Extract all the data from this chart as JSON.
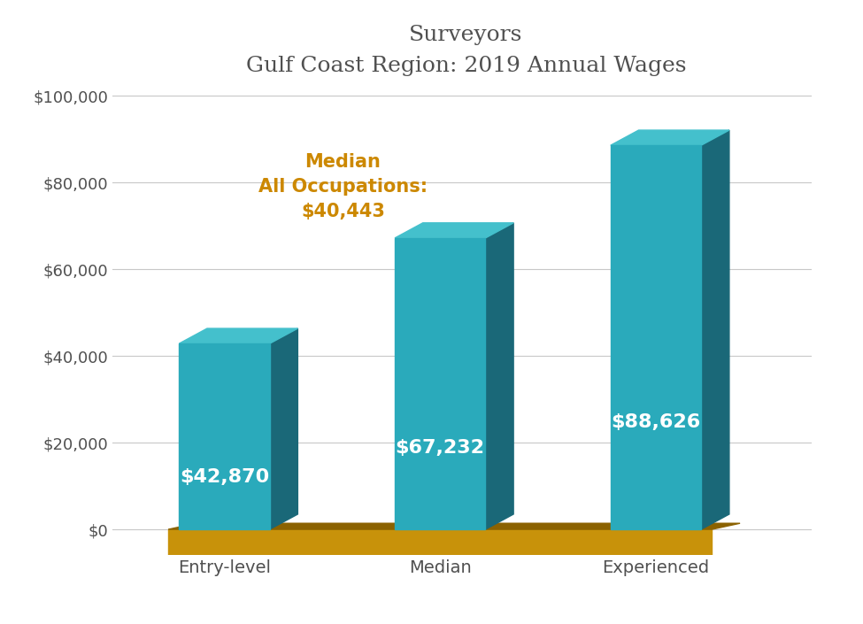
{
  "title_line1": "Surveyors",
  "title_line2": "Gulf Coast Region: 2019 Annual Wages",
  "categories": [
    "Entry-level",
    "Median",
    "Experienced"
  ],
  "values": [
    42870,
    67232,
    88626
  ],
  "value_labels": [
    "$42,870",
    "$67,232",
    "$88,626"
  ],
  "bar_front_color": "#2aaabb",
  "bar_side_color": "#1a6878",
  "bar_top_color": "#44c0cc",
  "floor_front_color": "#c8920a",
  "floor_top_color": "#c8920a",
  "floor_side_color": "#8B6200",
  "annotation_text": "Median\nAll Occupations:\n$40,443",
  "annotation_color": "#cc8800",
  "grid_color": "#c8c8c8",
  "label_color": "#ffffff",
  "title_color": "#505050",
  "tick_label_color": "#505050",
  "yticks": [
    0,
    20000,
    40000,
    60000,
    80000,
    100000
  ],
  "ytick_labels": [
    "$0",
    "$20,000",
    "$40,000",
    "$60,000",
    "$80,000",
    "$100,000"
  ],
  "bg_color": "#ffffff",
  "label_fontsize": 16,
  "title_fontsize": 18,
  "tick_fontsize": 13,
  "annotation_fontsize": 15
}
